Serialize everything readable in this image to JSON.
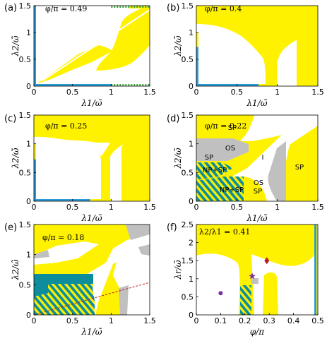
{
  "colors": {
    "yellow": "#fff200",
    "gray": "#c0c0c0",
    "teal": "#0e8e9c",
    "blue": "#2a9bd6",
    "green": "#3aa63a",
    "purple": "#7a3fb0",
    "red": "#b52025",
    "dot": "#7b2fa6"
  },
  "chart_data": [
    {
      "id": "a",
      "type": "heatmap",
      "panel_label": "(a)",
      "annotation": "φ/π = 0.49",
      "xlabel": "λ1/ω̃",
      "ylabel": "λ2/ω̃",
      "xlim": [
        0,
        1.5
      ],
      "ylim": [
        0,
        1.5
      ],
      "xticks": [
        "0",
        "0.5",
        "1",
        "1.5"
      ],
      "yticks": [
        "0",
        "0.5",
        "1",
        "1.5"
      ],
      "regions": [
        "yellow wedge along diagonal",
        "yellow upper-right region"
      ],
      "boundary_lines": [
        {
          "edge": "left",
          "from": 0,
          "to": 1.5,
          "color": "blue"
        },
        {
          "edge": "bottom",
          "from": 0,
          "to": 1.0,
          "color": "blue"
        },
        {
          "edge": "bottom",
          "from": 1.0,
          "to": 1.5,
          "color": "green dotted"
        },
        {
          "edge": "left-top",
          "from": 1.0,
          "to": 1.5,
          "color": "green dotted"
        }
      ]
    },
    {
      "id": "b",
      "type": "heatmap",
      "panel_label": "(b)",
      "annotation": "φ/π = 0.4",
      "xlabel": "λ1/ω̃",
      "ylabel": "λ2/ω̃",
      "xlim": [
        0,
        1.5
      ],
      "ylim": [
        0,
        1.5
      ],
      "xticks": [
        "0",
        "0.5",
        "1",
        "1.5"
      ],
      "yticks": [
        "0",
        "0.5",
        "1",
        "1.5"
      ],
      "boundary_lines": [
        {
          "edge": "left",
          "from": 0,
          "to": 0.73,
          "color": "blue"
        },
        {
          "edge": "left",
          "from": 0.73,
          "to": 1.0,
          "color": "yellow"
        },
        {
          "edge": "bottom",
          "from": 0,
          "to": 0.77,
          "color": "blue"
        },
        {
          "edge": "bottom",
          "from": 0.77,
          "to": 1.0,
          "color": "yellow"
        }
      ]
    },
    {
      "id": "c",
      "type": "heatmap",
      "panel_label": "(c)",
      "annotation": "φ/π = 0.25",
      "xlabel": "λ1/ω̃",
      "ylabel": "λ2/ω̃",
      "xlim": [
        0,
        1.5
      ],
      "ylim": [
        0,
        1.5
      ],
      "xticks": [
        "0",
        "0.5",
        "1",
        "1.5"
      ],
      "yticks": [
        "0",
        "0.5",
        "1",
        "1.5"
      ],
      "boundary_lines": [
        {
          "edge": "left",
          "from": 0,
          "to": 0.73,
          "color": "blue"
        },
        {
          "edge": "left",
          "from": 0.73,
          "to": 1.0,
          "color": "yellow"
        },
        {
          "edge": "bottom",
          "from": 0,
          "to": 0.73,
          "color": "blue"
        },
        {
          "edge": "bottom",
          "from": 0.73,
          "to": 1.0,
          "color": "yellow"
        }
      ]
    },
    {
      "id": "d",
      "type": "heatmap",
      "panel_label": "(d)",
      "annotation": "φ/π = 0.22",
      "xlabel": "λ1/ω̃",
      "ylabel": "λ2/ω̃",
      "xlim": [
        0,
        1.5
      ],
      "ylim": [
        0,
        1.5
      ],
      "xticks": [
        "0",
        "0.5",
        "1",
        "1.5"
      ],
      "yticks": [
        "0",
        "0.5",
        "1",
        "1.5"
      ],
      "region_labels": [
        "SP",
        "OS",
        "SP",
        "I",
        "NP+SP",
        "SP",
        "NP+SP",
        "OS",
        "SP"
      ]
    },
    {
      "id": "e",
      "type": "heatmap",
      "panel_label": "(e)",
      "annotation": "φ/π = 0.18",
      "xlabel": "λ1/ω̃",
      "ylabel": "λ2/ω̃",
      "xlim": [
        0,
        1.5
      ],
      "ylim": [
        0,
        1.5
      ],
      "xticks": [
        "0",
        "0.5",
        "1",
        "1.5"
      ],
      "yticks": [
        "0",
        "0.5",
        "1",
        "1.5"
      ],
      "dashed_line": {
        "x": [
          0,
          1.5
        ],
        "y": [
          0,
          0.55
        ],
        "color": "red"
      }
    },
    {
      "id": "f",
      "type": "heatmap",
      "panel_label": "(f)",
      "annotation": "λ2/λ1 = 0.41",
      "xlabel": "φ/π",
      "ylabel": "λr/ω̃",
      "xlim": [
        0,
        0.5
      ],
      "ylim": [
        0,
        2.5
      ],
      "xticks": [
        "0",
        "0.1",
        "0.2",
        "0.3",
        "0.4",
        "0.5"
      ],
      "yticks": [
        "0",
        "0.5",
        "1",
        "1.5",
        "2",
        "2.5"
      ],
      "markers": [
        {
          "shape": "circle",
          "x": 0.1,
          "y": 0.6,
          "color": "dot"
        },
        {
          "shape": "star",
          "x": 0.23,
          "y": 1.07,
          "color": "dot"
        },
        {
          "shape": "diamond",
          "x": 0.29,
          "y": 1.5,
          "color": "red"
        }
      ],
      "boundary_lines": [
        {
          "edge": "right",
          "x": 0.49,
          "from": 0,
          "to": 2.5,
          "color": "blue"
        }
      ]
    }
  ]
}
